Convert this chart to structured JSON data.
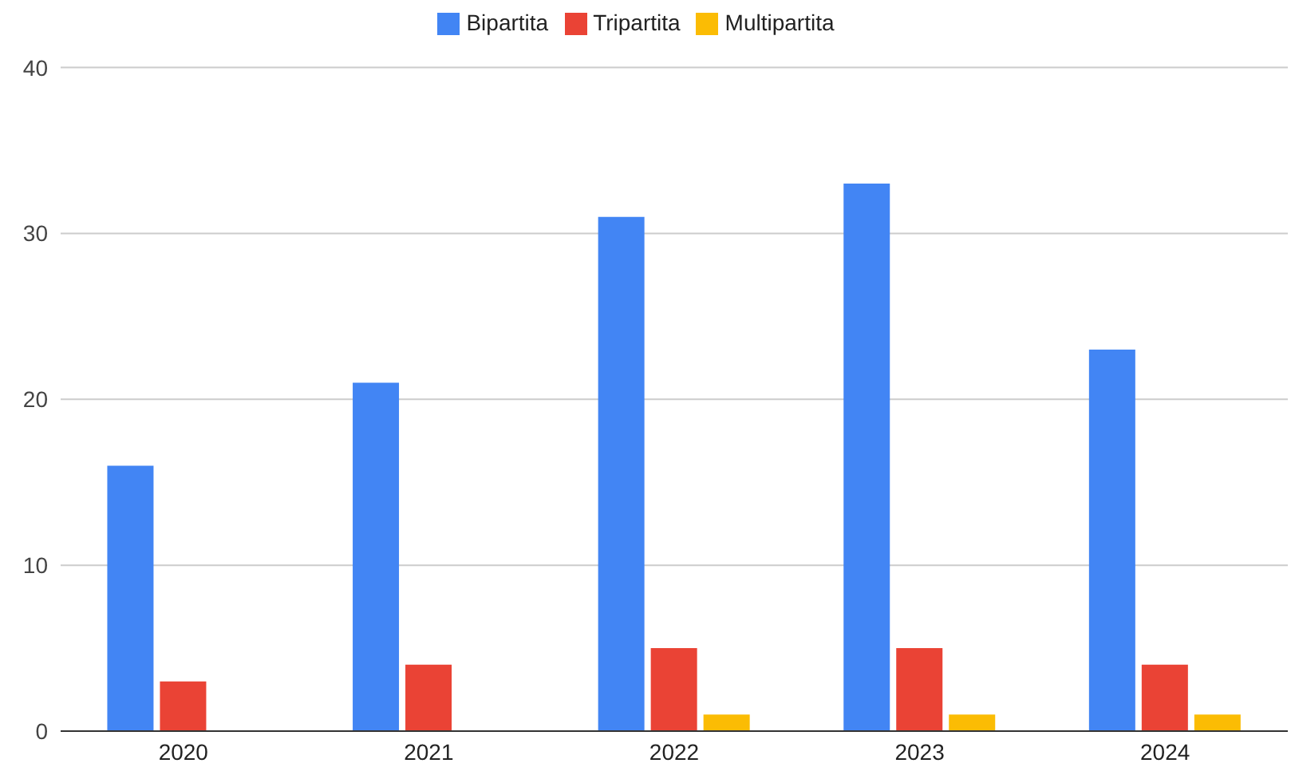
{
  "chart_data": {
    "type": "bar",
    "categories": [
      "2020",
      "2021",
      "2022",
      "2023",
      "2024"
    ],
    "series": [
      {
        "name": "Bipartita",
        "color": "#4285f4",
        "values": [
          16,
          21,
          31,
          33,
          23
        ]
      },
      {
        "name": "Tripartita",
        "color": "#ea4335",
        "values": [
          3,
          4,
          5,
          5,
          4
        ]
      },
      {
        "name": "Multipartita",
        "color": "#fbbc04",
        "values": [
          0,
          0,
          1,
          1,
          1
        ]
      }
    ],
    "ylim": [
      0,
      40
    ],
    "yticks": [
      0,
      10,
      20,
      30,
      40
    ],
    "grid": "y",
    "legend": "top"
  }
}
